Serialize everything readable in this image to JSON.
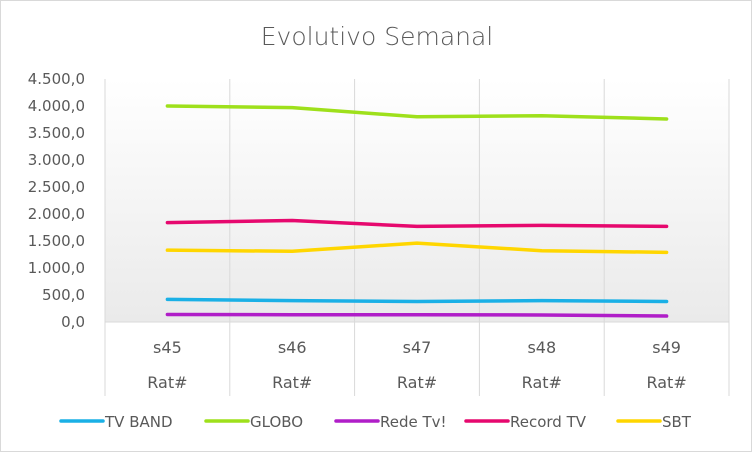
{
  "chart_data": {
    "type": "line",
    "title": "Evolutivo Semanal",
    "categories": [
      "s45",
      "s46",
      "s47",
      "s48",
      "s49"
    ],
    "category_sublabel": "Rat#",
    "ylim": [
      0,
      4500
    ],
    "yticks": [
      0,
      500,
      1000,
      1500,
      2000,
      2500,
      3000,
      3500,
      4000,
      4500
    ],
    "ytick_labels": [
      "0,0",
      "500,0",
      "1.000,0",
      "1.500,0",
      "2.000,0",
      "2.500,0",
      "3.000,0",
      "3.500,0",
      "4.000,0",
      "4.500,0"
    ],
    "grid": "vertical category separators",
    "legend_position": "bottom",
    "series": [
      {
        "name": "TV BAND",
        "color": "#1ab0e6",
        "values": [
          420,
          395,
          380,
          395,
          380
        ]
      },
      {
        "name": "GLOBO",
        "color": "#9ee01b",
        "values": [
          4000,
          3970,
          3800,
          3820,
          3760
        ]
      },
      {
        "name": "Rede Tv!",
        "color": "#b01ec8",
        "values": [
          140,
          135,
          135,
          130,
          110
        ]
      },
      {
        "name": "Record TV",
        "color": "#e6086e",
        "values": [
          1840,
          1880,
          1770,
          1790,
          1770
        ]
      },
      {
        "name": "SBT",
        "color": "#ffd600",
        "values": [
          1330,
          1310,
          1460,
          1320,
          1290
        ]
      }
    ]
  }
}
